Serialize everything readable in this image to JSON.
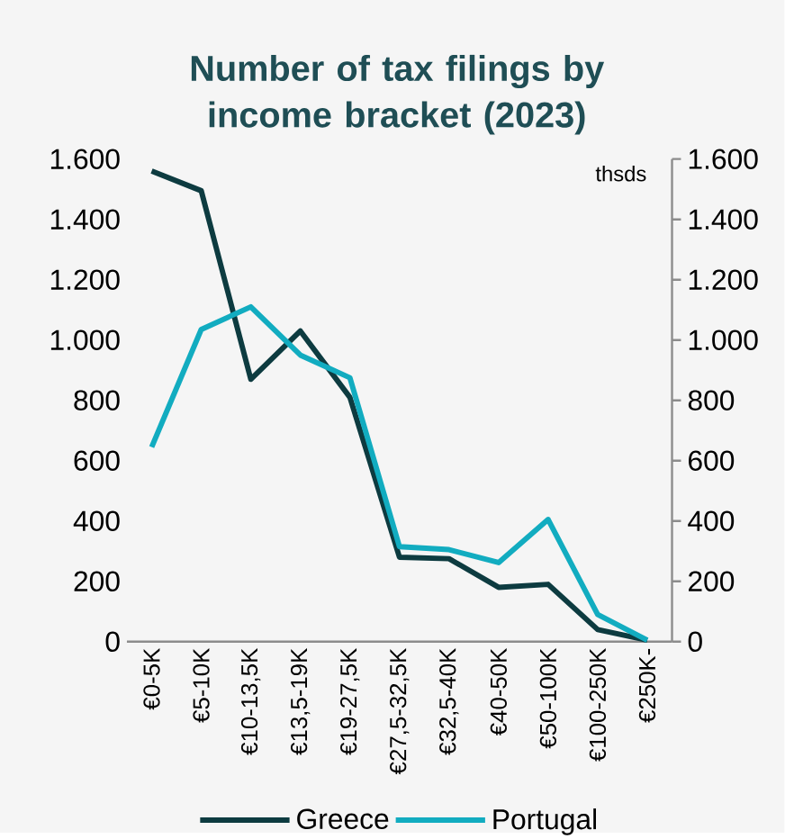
{
  "chart_data": {
    "type": "line",
    "title": "Number of tax filings by income bracket **(2023)**",
    "categories": [
      "€0-5K",
      "€5-10K",
      "€10-13,5K",
      "€13,5-19K",
      "€19-27,5K",
      "€27,5-32,5K",
      "€32,5-40K",
      "€40-50K",
      "€50-100K",
      "€100-250K",
      "€250K-"
    ],
    "series": [
      {
        "name": "Greece",
        "color": "#0d3b40",
        "values": [
          1560,
          1495,
          870,
          1030,
          810,
          280,
          275,
          180,
          190,
          40,
          5
        ]
      },
      {
        "name": "Portugal",
        "color": "#12acc0",
        "values": [
          645,
          1035,
          1110,
          950,
          875,
          315,
          305,
          262,
          405,
          90,
          5
        ]
      }
    ],
    "ylim": [
      0,
      1600
    ],
    "yticks": [
      0,
      200,
      400,
      600,
      800,
      {
        "value": 1000,
        "label": "1.000"
      },
      {
        "value": 1200,
        "label": "1.200"
      },
      {
        "value": 1400,
        "label": "1.400"
      },
      {
        "value": 1600,
        "label": "1.600"
      }
    ],
    "y2lim": [
      0,
      1600
    ],
    "y2ticks": [
      0,
      200,
      400,
      600,
      800,
      {
        "value": 1000,
        "label": "1.000"
      },
      {
        "value": 1200,
        "label": "1.200"
      },
      {
        "value": 1400,
        "label": "1.400"
      },
      {
        "value": 1600,
        "label": "1.600"
      }
    ],
    "annotations": [
      "thsds"
    ],
    "legend": "bottom",
    "grid": false,
    "marker": "none",
    "line_style": "solid"
  }
}
